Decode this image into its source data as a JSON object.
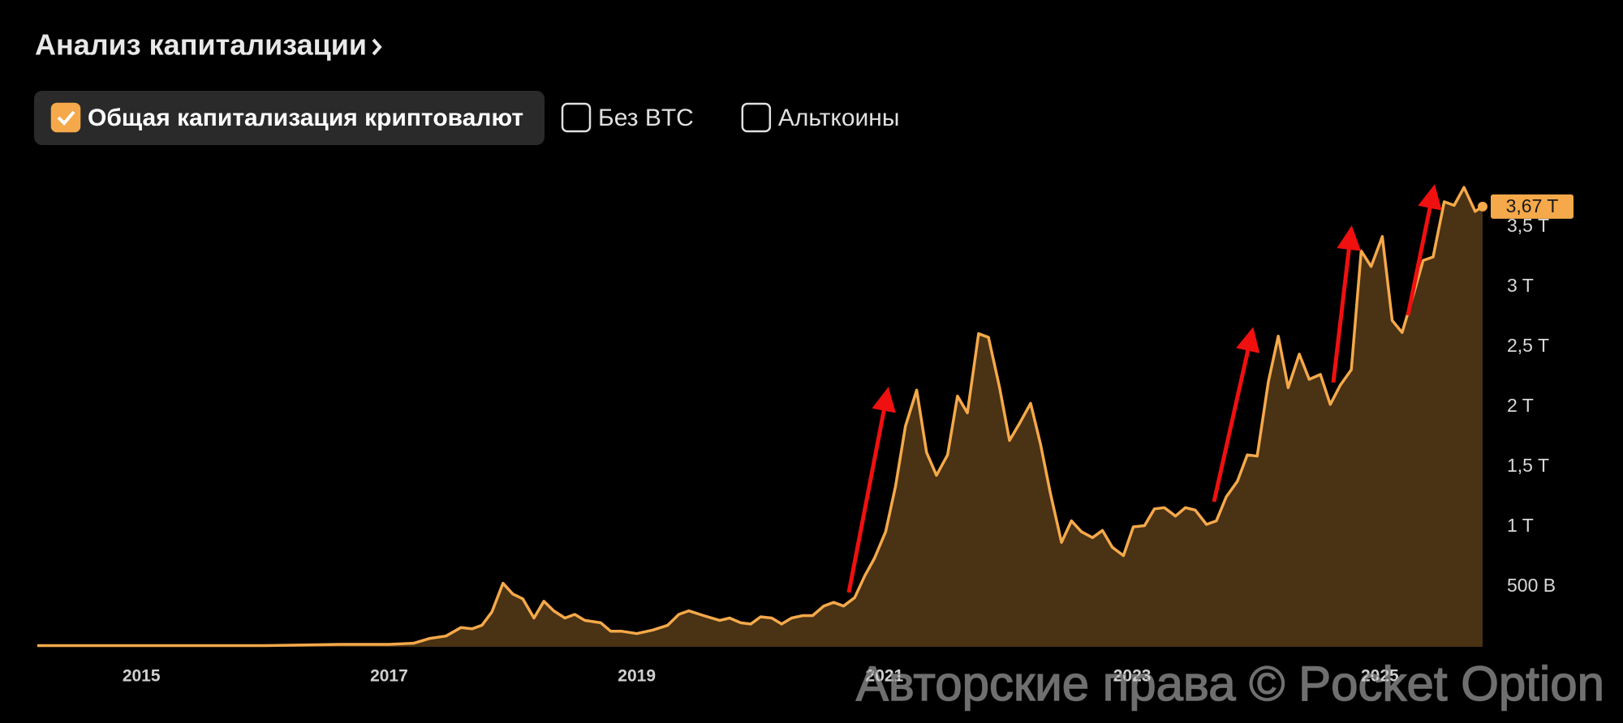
{
  "header": {
    "title": "Анализ капитализации"
  },
  "filters": [
    {
      "label": "Общая капитализация криптовалют",
      "checked": true
    },
    {
      "label": "Без BTC",
      "checked": false
    },
    {
      "label": "Альткоины",
      "checked": false
    }
  ],
  "chart_data": {
    "type": "area",
    "color": "#f5a94a",
    "fill": "#4a3214",
    "x": [
      2014.16,
      2015.0,
      2016.0,
      2016.6,
      2017.0,
      2017.2,
      2017.33,
      2017.46,
      2017.58,
      2017.67,
      2017.75,
      2017.83,
      2017.92,
      2018.0,
      2018.08,
      2018.17,
      2018.25,
      2018.33,
      2018.42,
      2018.5,
      2018.58,
      2018.71,
      2018.79,
      2018.88,
      2019.0,
      2019.13,
      2019.25,
      2019.34,
      2019.42,
      2019.54,
      2019.67,
      2019.75,
      2019.84,
      2019.92,
      2020.0,
      2020.09,
      2020.17,
      2020.25,
      2020.34,
      2020.42,
      2020.51,
      2020.59,
      2020.67,
      2020.76,
      2020.84,
      2020.92,
      2021.01,
      2021.09,
      2021.17,
      2021.26,
      2021.34,
      2021.42,
      2021.51,
      2021.59,
      2021.67,
      2021.76,
      2021.84,
      2021.93,
      2022.01,
      2022.09,
      2022.18,
      2022.26,
      2022.34,
      2022.43,
      2022.51,
      2022.59,
      2022.68,
      2022.76,
      2022.84,
      2022.93,
      2023.01,
      2023.1,
      2023.18,
      2023.26,
      2023.35,
      2023.43,
      2023.51,
      2023.6,
      2023.68,
      2023.76,
      2023.85,
      2023.93,
      2024.01,
      2024.1,
      2024.18,
      2024.26,
      2024.35,
      2024.43,
      2024.52,
      2024.6,
      2024.68,
      2024.77,
      2024.85,
      2024.93,
      2025.02,
      2025.1,
      2025.18,
      2025.27,
      2025.35,
      2025.43,
      2025.52,
      2025.6,
      2025.68,
      2025.77,
      2025.83
    ],
    "values": [
      0.01,
      0.01,
      0.01,
      0.02,
      0.02,
      0.03,
      0.07,
      0.09,
      0.16,
      0.15,
      0.18,
      0.29,
      0.53,
      0.44,
      0.4,
      0.24,
      0.38,
      0.3,
      0.24,
      0.27,
      0.22,
      0.2,
      0.13,
      0.13,
      0.11,
      0.14,
      0.18,
      0.27,
      0.3,
      0.26,
      0.22,
      0.24,
      0.2,
      0.19,
      0.25,
      0.24,
      0.19,
      0.24,
      0.26,
      0.26,
      0.34,
      0.37,
      0.34,
      0.41,
      0.59,
      0.74,
      0.96,
      1.34,
      1.84,
      2.14,
      1.62,
      1.43,
      1.6,
      2.09,
      1.95,
      2.61,
      2.58,
      2.16,
      1.72,
      1.86,
      2.03,
      1.69,
      1.28,
      0.87,
      1.05,
      0.96,
      0.91,
      0.97,
      0.83,
      0.76,
      1.0,
      1.01,
      1.15,
      1.16,
      1.09,
      1.16,
      1.14,
      1.02,
      1.05,
      1.25,
      1.38,
      1.6,
      1.59,
      2.21,
      2.59,
      2.16,
      2.44,
      2.23,
      2.27,
      2.02,
      2.18,
      2.31,
      3.3,
      3.17,
      3.42,
      2.72,
      2.62,
      2.93,
      3.22,
      3.25,
      3.71,
      3.68,
      3.83,
      3.63,
      3.67
    ],
    "value_labels": [
      null,
      null,
      null,
      null,
      null,
      null,
      null,
      null,
      null,
      null,
      null,
      null,
      null,
      null,
      null,
      null,
      null,
      null,
      null,
      null,
      null,
      null,
      null,
      null,
      null,
      null,
      null,
      null,
      null,
      null,
      null,
      null,
      null,
      null,
      null,
      null,
      null,
      null,
      null,
      null,
      null,
      null,
      null,
      null,
      null,
      null,
      null,
      null,
      null,
      null,
      null,
      null,
      null,
      null,
      null,
      null,
      null,
      null,
      null,
      null,
      null,
      null,
      null,
      null,
      null,
      null,
      null,
      null,
      null,
      null,
      null,
      null,
      null,
      null,
      null,
      null,
      null,
      null,
      null,
      null,
      null,
      null,
      null,
      null,
      null,
      null,
      null,
      null,
      null,
      null,
      null,
      null,
      null,
      null,
      null,
      null,
      null,
      null,
      null,
      null,
      null,
      null,
      null,
      null,
      "3,67 T"
    ],
    "xlim": [
      2014.16,
      2025.83
    ],
    "xticks": [
      2015,
      2017,
      2019,
      2021,
      2023,
      2025
    ],
    "ylim": [
      0,
      4
    ],
    "yticks": [
      {
        "value": 0.5,
        "label": "500 B"
      },
      {
        "value": 1,
        "label": "1 T"
      },
      {
        "value": 1.5,
        "label": "1,5 T"
      },
      {
        "value": 2,
        "label": "2 T"
      },
      {
        "value": 2.5,
        "label": "2,5 T"
      },
      {
        "value": 3,
        "label": "3 T"
      },
      {
        "value": 3.5,
        "label": "3,5 T"
      }
    ],
    "grid": false
  },
  "watermark": "Авторские права © Pocket Option"
}
